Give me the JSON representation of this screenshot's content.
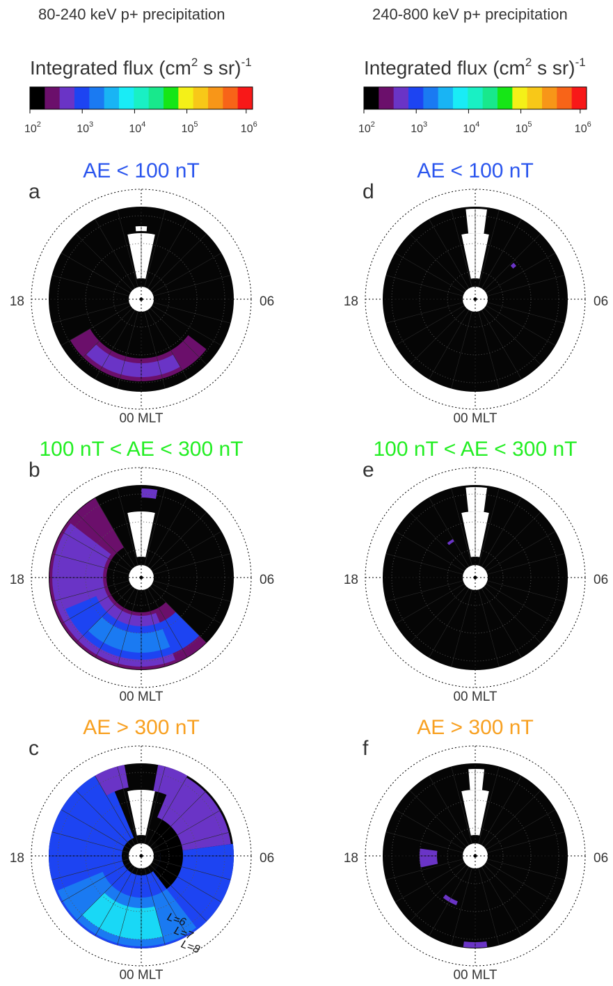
{
  "columns": [
    {
      "title": "80-240 keV p+ precipitation",
      "colorbar": {
        "label": "Integrated flux (cm",
        "label_sup": "2",
        "label_rest": " s sr)",
        "label_exp": "-1",
        "colors": [
          "#000000",
          "#6b0f6b",
          "#6a34c6",
          "#1d44f2",
          "#1a7af2",
          "#19b4f4",
          "#19ecf6",
          "#19f0c4",
          "#18e88c",
          "#16e616",
          "#f4f018",
          "#f8c818",
          "#f89618",
          "#f86418",
          "#f81818"
        ],
        "ticks": [
          {
            "base": "10",
            "exp": "2"
          },
          {
            "base": "10",
            "exp": "3"
          },
          {
            "base": "10",
            "exp": "4"
          },
          {
            "base": "10",
            "exp": "5"
          },
          {
            "base": "10",
            "exp": "6"
          }
        ]
      },
      "panels": [
        {
          "letter": "a",
          "condition": "AE < 100 nT",
          "condition_color": "#2a55ee",
          "mlt_left": "18",
          "mlt_right": "06",
          "mlt_bottom": "00 MLT"
        },
        {
          "letter": "b",
          "condition": "100 nT < AE < 300 nT",
          "condition_color": "#22ee22",
          "mlt_left": "18",
          "mlt_right": "06",
          "mlt_bottom": "00 MLT"
        },
        {
          "letter": "c",
          "condition": "AE > 300 nT",
          "condition_color": "#f8a020",
          "mlt_left": "18",
          "mlt_right": "06",
          "mlt_bottom": "00 MLT",
          "shells": [
            "L=6",
            "L=7",
            "L=8"
          ]
        }
      ]
    },
    {
      "title": "240-800 keV p+ precipitation",
      "colorbar": {
        "label": "Integrated flux (cm",
        "label_sup": "2",
        "label_rest": " s sr)",
        "label_exp": "-1",
        "colors": [
          "#000000",
          "#6b0f6b",
          "#6a34c6",
          "#1d44f2",
          "#1a7af2",
          "#19b4f4",
          "#19ecf6",
          "#19f0c4",
          "#18e88c",
          "#16e616",
          "#f4f018",
          "#f8c818",
          "#f89618",
          "#f86418",
          "#f81818"
        ],
        "ticks": [
          {
            "base": "10",
            "exp": "2"
          },
          {
            "base": "10",
            "exp": "3"
          },
          {
            "base": "10",
            "exp": "4"
          },
          {
            "base": "10",
            "exp": "5"
          },
          {
            "base": "10",
            "exp": "6"
          }
        ]
      },
      "panels": [
        {
          "letter": "d",
          "condition": "AE < 100 nT",
          "condition_color": "#2a55ee",
          "mlt_left": "18",
          "mlt_right": "06",
          "mlt_bottom": "00 MLT"
        },
        {
          "letter": "e",
          "condition": "100 nT < AE < 300 nT",
          "condition_color": "#22ee22",
          "mlt_left": "18",
          "mlt_right": "06",
          "mlt_bottom": "00 MLT"
        },
        {
          "letter": "f",
          "condition": "AE > 300 nT",
          "condition_color": "#f8a020",
          "mlt_left": "18",
          "mlt_right": "06",
          "mlt_bottom": "00 MLT"
        }
      ]
    }
  ]
}
